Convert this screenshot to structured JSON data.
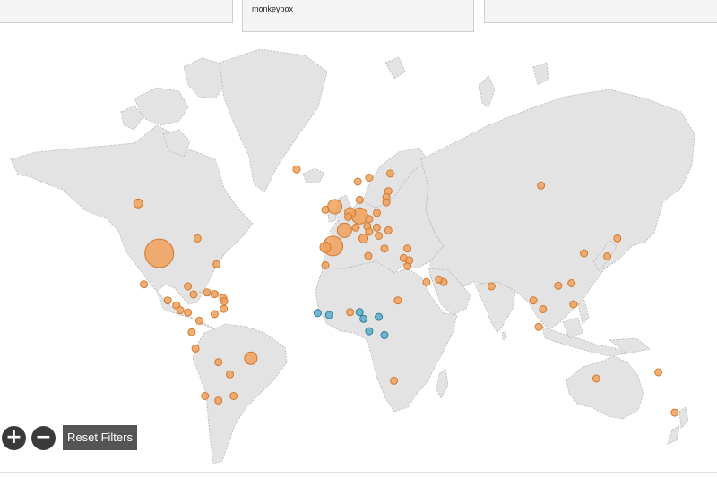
{
  "header": {
    "filter_title": "monkeypox"
  },
  "controls": {
    "zoom_in": "+",
    "zoom_out": "−",
    "reset_label": "Reset Filters"
  },
  "legend_colors": {
    "reported_cases": "#f0a05a",
    "endemic_cases": "#5aaac8",
    "land": "#e3e3e3"
  },
  "bubbles": [
    {
      "lon": -95,
      "lat": 37,
      "r": 16,
      "group": "reported_cases"
    },
    {
      "lon": -106,
      "lat": 55,
      "r": 5,
      "group": "reported_cases"
    },
    {
      "lon": -23,
      "lat": 64,
      "r": 4,
      "group": "reported_cases"
    },
    {
      "lon": -3,
      "lat": 54,
      "r": 8,
      "group": "reported_cases"
    },
    {
      "lon": -4,
      "lat": 40,
      "r": 11,
      "group": "reported_cases"
    },
    {
      "lon": -8,
      "lat": 39.5,
      "r": 6,
      "group": "reported_cases"
    },
    {
      "lon": 2,
      "lat": 46,
      "r": 8,
      "group": "reported_cases"
    },
    {
      "lon": 10,
      "lat": 51,
      "r": 9,
      "group": "reported_cases"
    },
    {
      "lon": 5,
      "lat": 52,
      "r": 6,
      "group": "reported_cases"
    },
    {
      "lon": 4,
      "lat": 50.7,
      "r": 4,
      "group": "reported_cases"
    },
    {
      "lon": 12,
      "lat": 43,
      "r": 5,
      "group": "reported_cases"
    },
    {
      "lon": 8,
      "lat": 47,
      "r": 4,
      "group": "reported_cases"
    },
    {
      "lon": 14,
      "lat": 47.5,
      "r": 4,
      "group": "reported_cases"
    },
    {
      "lon": 19,
      "lat": 52,
      "r": 4,
      "group": "reported_cases"
    },
    {
      "lon": 15,
      "lat": 50,
      "r": 4,
      "group": "reported_cases"
    },
    {
      "lon": 10,
      "lat": 56,
      "r": 4,
      "group": "reported_cases"
    },
    {
      "lon": 15,
      "lat": 62,
      "r": 4,
      "group": "reported_cases"
    },
    {
      "lon": 9,
      "lat": 61,
      "r": 4,
      "group": "reported_cases"
    },
    {
      "lon": 26,
      "lat": 63,
      "r": 4,
      "group": "reported_cases"
    },
    {
      "lon": 25,
      "lat": 58.5,
      "r": 4,
      "group": "reported_cases"
    },
    {
      "lon": 24,
      "lat": 56.8,
      "r": 4,
      "group": "reported_cases"
    },
    {
      "lon": 24,
      "lat": 55.3,
      "r": 4,
      "group": "reported_cases"
    },
    {
      "lon": -8,
      "lat": 53,
      "r": 4,
      "group": "reported_cases"
    },
    {
      "lon": 19,
      "lat": 47,
      "r": 4,
      "group": "reported_cases"
    },
    {
      "lon": 25,
      "lat": 46,
      "r": 4,
      "group": "reported_cases"
    },
    {
      "lon": 20,
      "lat": 44,
      "r": 4,
      "group": "reported_cases"
    },
    {
      "lon": 15,
      "lat": 45.5,
      "r": 4,
      "group": "reported_cases"
    },
    {
      "lon": 23,
      "lat": 39,
      "r": 4,
      "group": "reported_cases"
    },
    {
      "lon": 33,
      "lat": 35,
      "r": 4,
      "group": "reported_cases"
    },
    {
      "lon": 35,
      "lat": 39,
      "r": 4,
      "group": "reported_cases"
    },
    {
      "lon": 35,
      "lat": 31.5,
      "r": 4,
      "group": "reported_cases"
    },
    {
      "lon": 36,
      "lat": 34,
      "r": 4,
      "group": "reported_cases"
    },
    {
      "lon": 14.5,
      "lat": 35.9,
      "r": 4,
      "group": "reported_cases"
    },
    {
      "lon": -8,
      "lat": 31.8,
      "r": 4,
      "group": "reported_cases"
    },
    {
      "lon": 45,
      "lat": 24,
      "r": 4,
      "group": "reported_cases"
    },
    {
      "lon": 54,
      "lat": 24,
      "r": 4,
      "group": "reported_cases"
    },
    {
      "lon": 51.5,
      "lat": 25.3,
      "r": 4,
      "group": "reported_cases"
    },
    {
      "lon": 30,
      "lat": 15,
      "r": 4,
      "group": "reported_cases"
    },
    {
      "lon": 79,
      "lat": 22,
      "r": 4,
      "group": "reported_cases"
    },
    {
      "lon": 101,
      "lat": 15,
      "r": 4,
      "group": "reported_cases"
    },
    {
      "lon": 106,
      "lat": 10.5,
      "r": 4,
      "group": "reported_cases"
    },
    {
      "lon": 103.8,
      "lat": 1.3,
      "r": 4,
      "group": "reported_cases"
    },
    {
      "lon": 114,
      "lat": 22.3,
      "r": 4,
      "group": "reported_cases"
    },
    {
      "lon": 121,
      "lat": 23.5,
      "r": 4,
      "group": "reported_cases"
    },
    {
      "lon": 122,
      "lat": 13,
      "r": 4,
      "group": "reported_cases"
    },
    {
      "lon": 127.5,
      "lat": 37,
      "r": 4,
      "group": "reported_cases"
    },
    {
      "lon": 139.7,
      "lat": 35.7,
      "r": 4,
      "group": "reported_cases"
    },
    {
      "lon": 145,
      "lat": 43,
      "r": 4,
      "group": "reported_cases"
    },
    {
      "lon": 105,
      "lat": 60,
      "r": 4,
      "group": "reported_cases"
    },
    {
      "lon": 134,
      "lat": -25,
      "r": 4,
      "group": "reported_cases"
    },
    {
      "lon": 175,
      "lat": -40,
      "r": 4,
      "group": "reported_cases"
    },
    {
      "lon": 166.5,
      "lat": -22,
      "r": 4,
      "group": "reported_cases"
    },
    {
      "lon": 28,
      "lat": -26,
      "r": 4,
      "group": "reported_cases"
    },
    {
      "lon": -75,
      "lat": 43,
      "r": 4,
      "group": "reported_cases"
    },
    {
      "lon": -65,
      "lat": 32.3,
      "r": 4,
      "group": "reported_cases"
    },
    {
      "lon": -103,
      "lat": 23,
      "r": 4,
      "group": "reported_cases"
    },
    {
      "lon": -80,
      "lat": 22,
      "r": 4,
      "group": "reported_cases"
    },
    {
      "lon": -77,
      "lat": 18,
      "r": 4,
      "group": "reported_cases"
    },
    {
      "lon": -70,
      "lat": 19,
      "r": 4,
      "group": "reported_cases"
    },
    {
      "lon": -66,
      "lat": 18.2,
      "r": 4,
      "group": "reported_cases"
    },
    {
      "lon": -61.5,
      "lat": 16.2,
      "r": 4,
      "group": "reported_cases"
    },
    {
      "lon": -61,
      "lat": 14.6,
      "r": 4,
      "group": "reported_cases"
    },
    {
      "lon": -61.2,
      "lat": 10.7,
      "r": 4,
      "group": "reported_cases"
    },
    {
      "lon": -90.5,
      "lat": 15,
      "r": 4,
      "group": "reported_cases"
    },
    {
      "lon": -86,
      "lat": 12.5,
      "r": 4,
      "group": "reported_cases"
    },
    {
      "lon": -84,
      "lat": 10,
      "r": 4,
      "group": "reported_cases"
    },
    {
      "lon": -80,
      "lat": 8.8,
      "r": 4,
      "group": "reported_cases"
    },
    {
      "lon": -74,
      "lat": 4.5,
      "r": 4,
      "group": "reported_cases"
    },
    {
      "lon": -66,
      "lat": 8,
      "r": 4,
      "group": "reported_cases"
    },
    {
      "lon": -78,
      "lat": -1.5,
      "r": 4,
      "group": "reported_cases"
    },
    {
      "lon": -76,
      "lat": -10,
      "r": 4,
      "group": "reported_cases"
    },
    {
      "lon": -47,
      "lat": -15,
      "r": 7,
      "group": "reported_cases"
    },
    {
      "lon": -64,
      "lat": -17,
      "r": 4,
      "group": "reported_cases"
    },
    {
      "lon": -58,
      "lat": -23,
      "r": 4,
      "group": "reported_cases"
    },
    {
      "lon": -71,
      "lat": -33,
      "r": 4,
      "group": "reported_cases"
    },
    {
      "lon": -64,
      "lat": -35,
      "r": 4,
      "group": "reported_cases"
    },
    {
      "lon": -56,
      "lat": -33,
      "r": 4,
      "group": "reported_cases"
    },
    {
      "lon": 5,
      "lat": 9,
      "r": 4,
      "group": "reported_cases"
    },
    {
      "lon": -12,
      "lat": 8.5,
      "r": 4,
      "group": "endemic_cases"
    },
    {
      "lon": -6,
      "lat": 7.5,
      "r": 4,
      "group": "endemic_cases"
    },
    {
      "lon": 12,
      "lat": 5.5,
      "r": 4,
      "group": "endemic_cases"
    },
    {
      "lon": 10,
      "lat": 9,
      "r": 4,
      "group": "endemic_cases"
    },
    {
      "lon": 20,
      "lat": 6.5,
      "r": 4,
      "group": "endemic_cases"
    },
    {
      "lon": 15,
      "lat": -1,
      "r": 4,
      "group": "endemic_cases"
    },
    {
      "lon": 23,
      "lat": -3,
      "r": 4,
      "group": "endemic_cases"
    }
  ]
}
